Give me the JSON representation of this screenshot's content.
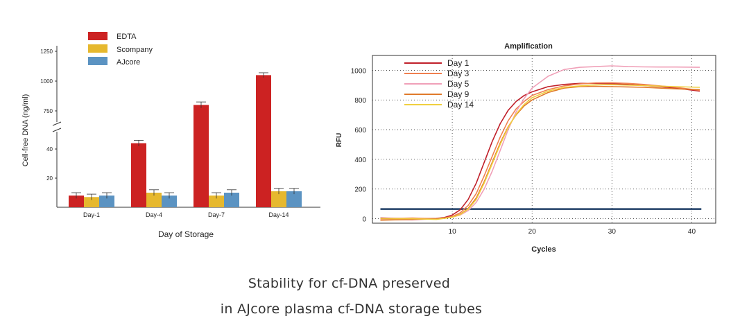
{
  "caption": {
    "line1": "Stability for cf-DNA preserved",
    "line2": "in AJcore plasma cf-DNA storage tubes"
  },
  "chart_data": [
    {
      "type": "bar",
      "title": "",
      "xlabel": "Day of Storage",
      "ylabel": "Cell-free DNA  (ng/ml)",
      "categories": [
        "Day-1",
        "Day-4",
        "Day-7",
        "Day-14"
      ],
      "y_axis_break": true,
      "yticks_lower": [
        "20",
        "40"
      ],
      "yticks_upper": [
        "750",
        "1000",
        "1250"
      ],
      "legend_position": "top-left",
      "series": [
        {
          "name": "EDTA",
          "color": "#cc2222",
          "values": [
            8,
            44,
            800,
            1050
          ],
          "errors": [
            2,
            2,
            25,
            20
          ]
        },
        {
          "name": "Scompany",
          "color": "#e6b82e",
          "values": [
            7,
            10,
            8,
            11
          ],
          "errors": [
            2,
            2,
            2,
            2
          ]
        },
        {
          "name": "AJcore",
          "color": "#5b93c2",
          "values": [
            8,
            8,
            10,
            11
          ],
          "errors": [
            2,
            2,
            2,
            2
          ]
        }
      ]
    },
    {
      "type": "line",
      "title": "Amplification",
      "xlabel": "Cycles",
      "ylabel": "RFU",
      "xlim": [
        0,
        43
      ],
      "ylim": [
        -30,
        1100
      ],
      "xticks": [
        10,
        20,
        30,
        40
      ],
      "yticks": [
        0,
        200,
        400,
        600,
        800,
        1000
      ],
      "grid": true,
      "legend_position": "top-left",
      "threshold": {
        "value": 65,
        "color": "#1f3e66"
      },
      "series": [
        {
          "name": "Day 1",
          "color": "#c0202a",
          "x": [
            1,
            5,
            8,
            9,
            10,
            11,
            12,
            13,
            14,
            15,
            16,
            17,
            18,
            19,
            20,
            22,
            24,
            26,
            28,
            30,
            32,
            34,
            36,
            38,
            41
          ],
          "y": [
            5,
            0,
            2,
            8,
            25,
            60,
            130,
            240,
            380,
            520,
            640,
            730,
            790,
            830,
            855,
            890,
            905,
            912,
            912,
            910,
            905,
            898,
            890,
            880,
            860
          ]
        },
        {
          "name": "Day 3",
          "color": "#f08050",
          "x": [
            1,
            5,
            8,
            9,
            10,
            11,
            12,
            13,
            14,
            15,
            16,
            17,
            18,
            19,
            20,
            22,
            24,
            26,
            28,
            30,
            32,
            34,
            36,
            38,
            41
          ],
          "y": [
            0,
            5,
            0,
            5,
            15,
            40,
            90,
            170,
            290,
            420,
            550,
            660,
            740,
            790,
            830,
            870,
            895,
            908,
            915,
            916,
            912,
            905,
            895,
            885,
            865
          ]
        },
        {
          "name": "Day 5",
          "color": "#f0a0b8",
          "x": [
            1,
            5,
            8,
            9,
            10,
            11,
            12,
            13,
            14,
            15,
            16,
            17,
            18,
            19,
            20,
            22,
            24,
            26,
            28,
            30,
            32,
            34,
            36,
            38,
            41
          ],
          "y": [
            -5,
            -8,
            0,
            3,
            10,
            25,
            55,
            110,
            200,
            320,
            460,
            600,
            720,
            810,
            880,
            960,
            1005,
            1020,
            1025,
            1030,
            1025,
            1023,
            1022,
            1022,
            1020
          ]
        },
        {
          "name": "Day 9",
          "color": "#e07a2a",
          "x": [
            1,
            5,
            8,
            9,
            10,
            11,
            12,
            13,
            14,
            15,
            16,
            17,
            18,
            19,
            20,
            22,
            24,
            26,
            28,
            30,
            32,
            34,
            36,
            38,
            41
          ],
          "y": [
            -10,
            -5,
            0,
            4,
            12,
            30,
            70,
            140,
            250,
            380,
            510,
            620,
            700,
            760,
            800,
            850,
            880,
            890,
            892,
            890,
            888,
            885,
            880,
            875,
            870
          ]
        },
        {
          "name": "Day 14",
          "color": "#f0d040",
          "x": [
            1,
            5,
            8,
            9,
            10,
            11,
            12,
            13,
            14,
            15,
            16,
            17,
            18,
            19,
            20,
            22,
            24,
            26,
            28,
            30,
            32,
            34,
            36,
            38,
            41
          ],
          "y": [
            0,
            0,
            -5,
            2,
            10,
            28,
            65,
            130,
            240,
            370,
            500,
            615,
            705,
            770,
            815,
            860,
            885,
            895,
            902,
            903,
            900,
            897,
            893,
            890,
            885
          ]
        }
      ]
    }
  ]
}
